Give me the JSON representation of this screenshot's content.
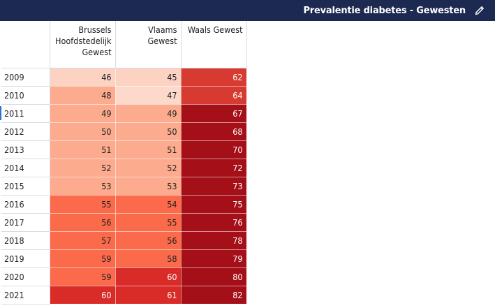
{
  "header": {
    "title": "Prevalentie diabetes - Gewesten",
    "edit_icon": "pencil-icon"
  },
  "table": {
    "columns": [
      "Brussels Hoofdstedelijk Gewest",
      "Vlaams Gewest",
      "Waals Gewest"
    ],
    "rows": [
      {
        "year": "2009",
        "values": [
          "46",
          "45",
          "62"
        ],
        "colors": [
          "#fcd2c3",
          "#fcd2c3",
          "#d63a30"
        ]
      },
      {
        "year": "2010",
        "values": [
          "48",
          "47",
          "64"
        ],
        "colors": [
          "#fcab8e",
          "#fdd9cb",
          "#d63a30"
        ]
      },
      {
        "year": "2011",
        "values": [
          "49",
          "49",
          "67"
        ],
        "colors": [
          "#fcab8e",
          "#fcab8e",
          "#a40f18"
        ]
      },
      {
        "year": "2012",
        "values": [
          "50",
          "50",
          "68"
        ],
        "colors": [
          "#fcab8e",
          "#fcab8e",
          "#a40f18"
        ]
      },
      {
        "year": "2013",
        "values": [
          "51",
          "51",
          "70"
        ],
        "colors": [
          "#fcab8e",
          "#fcab8e",
          "#a40f18"
        ]
      },
      {
        "year": "2014",
        "values": [
          "52",
          "52",
          "72"
        ],
        "colors": [
          "#fcab8e",
          "#fcab8e",
          "#a40f18"
        ]
      },
      {
        "year": "2015",
        "values": [
          "53",
          "53",
          "73"
        ],
        "colors": [
          "#fcab8e",
          "#fcab8e",
          "#a40f18"
        ]
      },
      {
        "year": "2016",
        "values": [
          "55",
          "54",
          "75"
        ],
        "colors": [
          "#fb6a4a",
          "#fb6a4a",
          "#a40f18"
        ]
      },
      {
        "year": "2017",
        "values": [
          "56",
          "55",
          "76"
        ],
        "colors": [
          "#fb6a4a",
          "#fb6a4a",
          "#a40f18"
        ]
      },
      {
        "year": "2018",
        "values": [
          "57",
          "56",
          "78"
        ],
        "colors": [
          "#fb6a4a",
          "#fb6a4a",
          "#a40f18"
        ]
      },
      {
        "year": "2019",
        "values": [
          "59",
          "58",
          "79"
        ],
        "colors": [
          "#fb6a4a",
          "#fb6a4a",
          "#a40f18"
        ]
      },
      {
        "year": "2020",
        "values": [
          "59",
          "60",
          "80"
        ],
        "colors": [
          "#fb6a4a",
          "#d92b27",
          "#a40f18"
        ]
      },
      {
        "year": "2021",
        "values": [
          "60",
          "61",
          "82"
        ],
        "colors": [
          "#d92b27",
          "#d92b27",
          "#a40f18"
        ]
      }
    ]
  }
}
